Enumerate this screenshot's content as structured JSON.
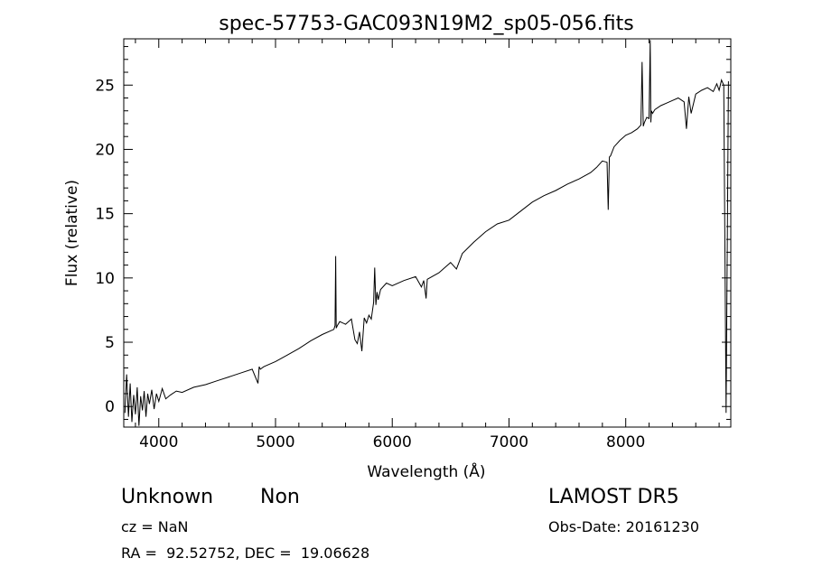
{
  "chart_data": {
    "type": "line",
    "title": "spec-57753-GAC093N19M2_sp05-056.fits",
    "xlabel": "Wavelength (Å)",
    "ylabel": "Flux (relative)",
    "xlim": [
      3700,
      8900
    ],
    "ylim": [
      -1.6,
      28.6
    ],
    "xticks": [
      4000,
      5000,
      6000,
      7000,
      8000
    ],
    "yticks": [
      0,
      5,
      10,
      15,
      20,
      25
    ],
    "grid": false,
    "series": [
      {
        "x": [
          3710,
          3725,
          3740,
          3755,
          3770,
          3785,
          3800,
          3815,
          3830,
          3845,
          3860,
          3875,
          3890,
          3905,
          3920,
          3940,
          3960,
          3980,
          4000,
          4030,
          4060,
          4100,
          4150,
          4200,
          4300,
          4400,
          4500,
          4600,
          4700,
          4800,
          4850,
          4860,
          4870,
          4900,
          5000,
          5100,
          5200,
          5300,
          5400,
          5500,
          5510,
          5515,
          5520,
          5530,
          5550,
          5600,
          5650,
          5680,
          5700,
          5720,
          5740,
          5760,
          5780,
          5800,
          5820,
          5840,
          5850,
          5860,
          5870,
          5880,
          5900,
          5950,
          6000,
          6100,
          6200,
          6250,
          6270,
          6290,
          6300,
          6400,
          6450,
          6500,
          6550,
          6600,
          6700,
          6800,
          6900,
          7000,
          7100,
          7200,
          7300,
          7400,
          7500,
          7600,
          7700,
          7750,
          7800,
          7840,
          7850,
          7860,
          7870,
          7900,
          7950,
          8000,
          8050,
          8100,
          8130,
          8140,
          8150,
          8160,
          8180,
          8200,
          8210,
          8215,
          8220,
          8230,
          8250,
          8300,
          8350,
          8400,
          8450,
          8500,
          8520,
          8540,
          8560,
          8600,
          8650,
          8700,
          8750,
          8780,
          8800,
          8820,
          8840,
          8860,
          8880
        ],
        "y": [
          -0.5,
          2.5,
          -0.8,
          1.8,
          -1.2,
          0.9,
          -0.6,
          1.5,
          -1.5,
          0.8,
          -0.3,
          1.2,
          -0.8,
          1.0,
          0.2,
          1.3,
          -0.2,
          1.0,
          0.4,
          1.4,
          0.6,
          0.9,
          1.2,
          1.1,
          1.5,
          1.7,
          2.0,
          2.3,
          2.6,
          2.9,
          1.8,
          3.1,
          2.9,
          3.1,
          3.5,
          4.0,
          4.5,
          5.1,
          5.6,
          6.0,
          6.3,
          11.7,
          6.1,
          6.3,
          6.6,
          6.4,
          6.8,
          5.2,
          4.9,
          5.8,
          4.3,
          6.9,
          6.5,
          7.1,
          6.8,
          8.1,
          10.8,
          7.9,
          8.9,
          8.3,
          9.1,
          9.6,
          9.4,
          9.8,
          10.1,
          9.3,
          9.8,
          8.4,
          9.9,
          10.4,
          10.8,
          11.2,
          10.7,
          11.9,
          12.8,
          13.6,
          14.2,
          14.5,
          15.2,
          15.9,
          16.4,
          16.8,
          17.3,
          17.7,
          18.2,
          18.6,
          19.1,
          19.0,
          15.3,
          19.4,
          19.5,
          20.2,
          20.7,
          21.1,
          21.3,
          21.6,
          21.9,
          26.8,
          21.8,
          22.1,
          22.5,
          22.4,
          28.5,
          22.1,
          23.0,
          22.8,
          23.1,
          23.4,
          23.6,
          23.8,
          24.0,
          23.7,
          21.6,
          24.1,
          22.8,
          24.3,
          24.6,
          24.8,
          24.5,
          25.1,
          24.6,
          25.4,
          25.0,
          -0.5,
          25.3
        ]
      }
    ]
  },
  "footer": {
    "class_label": "Unknown",
    "subclass_label": "Non",
    "survey": "LAMOST DR5",
    "cz": "cz = NaN",
    "obs_date": "Obs-Date: 20161230",
    "coords": "RA =  92.52752, DEC =  19.06628"
  }
}
